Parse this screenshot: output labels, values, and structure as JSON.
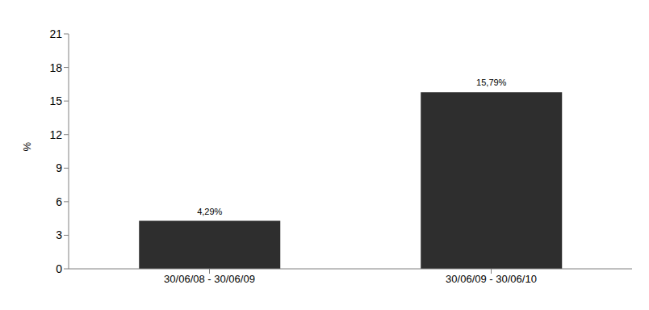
{
  "chart_data": {
    "type": "bar",
    "y_label": "%",
    "categories": [
      "30/06/08 - 30/06/09",
      "30/06/09 - 30/06/10"
    ],
    "values": [
      4.29,
      15.79
    ],
    "value_labels": [
      "4,29%",
      "15,79%"
    ],
    "data_labels": true,
    "color": "#2e2e2e",
    "ylim": [
      0,
      21
    ],
    "yticks": [
      0,
      3,
      6,
      9,
      12,
      15,
      18,
      21
    ],
    "grid": false
  }
}
